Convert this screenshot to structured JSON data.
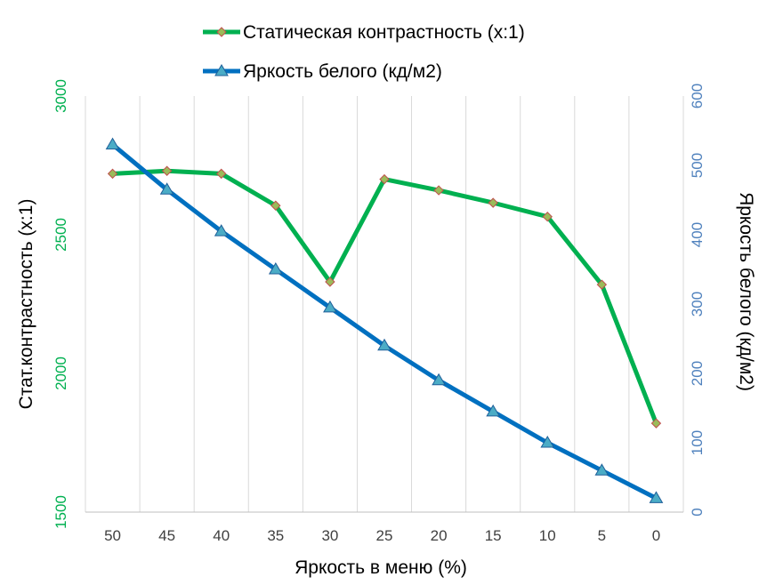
{
  "chart_data": {
    "type": "line",
    "title": "",
    "x": [
      50,
      45,
      40,
      35,
      30,
      25,
      20,
      15,
      10,
      5,
      0
    ],
    "xlabel": "Яркость в меню (%)",
    "y_left_label": "Стат.контрастность  (x:1)",
    "y_right_label": "Яркость белого (кд/м2)",
    "y_left_lim": [
      1500,
      3000
    ],
    "y_left_ticks": [
      1500,
      2000,
      2500,
      3000
    ],
    "y_right_lim": [
      0,
      600
    ],
    "y_right_ticks": [
      0,
      100,
      200,
      300,
      400,
      500,
      600
    ],
    "grid": "vertical",
    "legend_position": "top",
    "series": [
      {
        "name": "Статическая контрастность (x:1)",
        "axis": "left",
        "color": "#00B050",
        "marker": "diamond",
        "marker_fill": "#9BBB59",
        "marker_edge": "#C0504D",
        "values": [
          2720,
          2730,
          2720,
          2605,
          2330,
          2700,
          2660,
          2615,
          2565,
          2320,
          1820
        ]
      },
      {
        "name": "Яркость белого (кд/м2)",
        "axis": "right",
        "color": "#0070C0",
        "marker": "triangle",
        "marker_fill": "#4BACC6",
        "marker_edge": "#1F5F99",
        "values": [
          530,
          465,
          405,
          350,
          295,
          240,
          190,
          145,
          100,
          60,
          20
        ]
      }
    ],
    "left_tick_color": "#00B050",
    "right_tick_color": "#4F81BD",
    "x_tick_color": "#404040"
  }
}
